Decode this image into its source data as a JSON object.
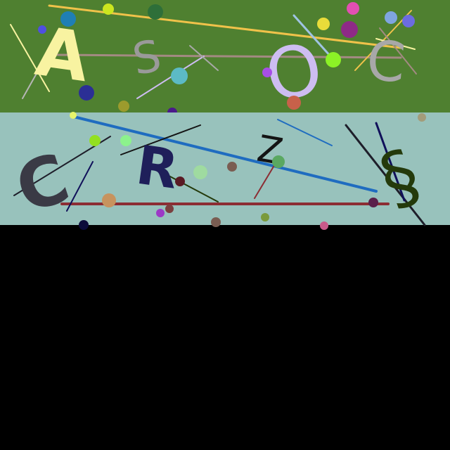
{
  "canvas": {
    "background": "#000000"
  },
  "top_band": {
    "background": "#4f8030",
    "glyphs": [
      {
        "id": "letter-a",
        "text": "A",
        "color": "#f8f3a1"
      },
      {
        "id": "letter-s",
        "text": "S",
        "color": "#9a9a9a"
      },
      {
        "id": "letter-o",
        "text": "O",
        "color": "#cdbdf1"
      },
      {
        "id": "letter-c",
        "text": "C",
        "color": "#a8a8a8"
      }
    ],
    "line_colors": [
      "#f0c24a",
      "#a38a82",
      "#f8f3a1",
      "#b6b6b6",
      "#cdbdf1",
      "#a8a8a8",
      "#9fc3e3"
    ],
    "dot_colors": [
      "#1f7fb4",
      "#cce61f",
      "#2e6f39",
      "#e9dc3a",
      "#e34fb2",
      "#7fa5e0",
      "#6c6ce0",
      "#4f4fe0",
      "#8e2a86",
      "#8cf226",
      "#a74fe6",
      "#5cbac6",
      "#2b2f95",
      "#9c9b2d",
      "#c8614a",
      "#4a1a8a"
    ]
  },
  "bottom_band": {
    "background": "#98c2bc",
    "glyphs": [
      {
        "id": "letter-c",
        "text": "C",
        "color": "#3a3a45"
      },
      {
        "id": "letter-r",
        "text": "R",
        "color": "#1f1f5a"
      },
      {
        "id": "letter-z",
        "text": "Z",
        "color": "#141414"
      },
      {
        "id": "swirl",
        "text": "§",
        "color": "#243a0b"
      }
    ],
    "line_colors": [
      "#1f6cc0",
      "#8c2d33",
      "#1e1e2a",
      "#10105a",
      "#141414",
      "#243a0b"
    ],
    "dot_colors": [
      "#e8f56a",
      "#93e01f",
      "#8cf28c",
      "#c7935e",
      "#9fdba0",
      "#7a5d52",
      "#5aa861",
      "#5a1a24",
      "#a39c7a",
      "#5a1f4a",
      "#9c39c6",
      "#7a3f3f",
      "#7a5d52",
      "#7a9a3a",
      "#0c0c3a",
      "#c85a8a"
    ]
  }
}
